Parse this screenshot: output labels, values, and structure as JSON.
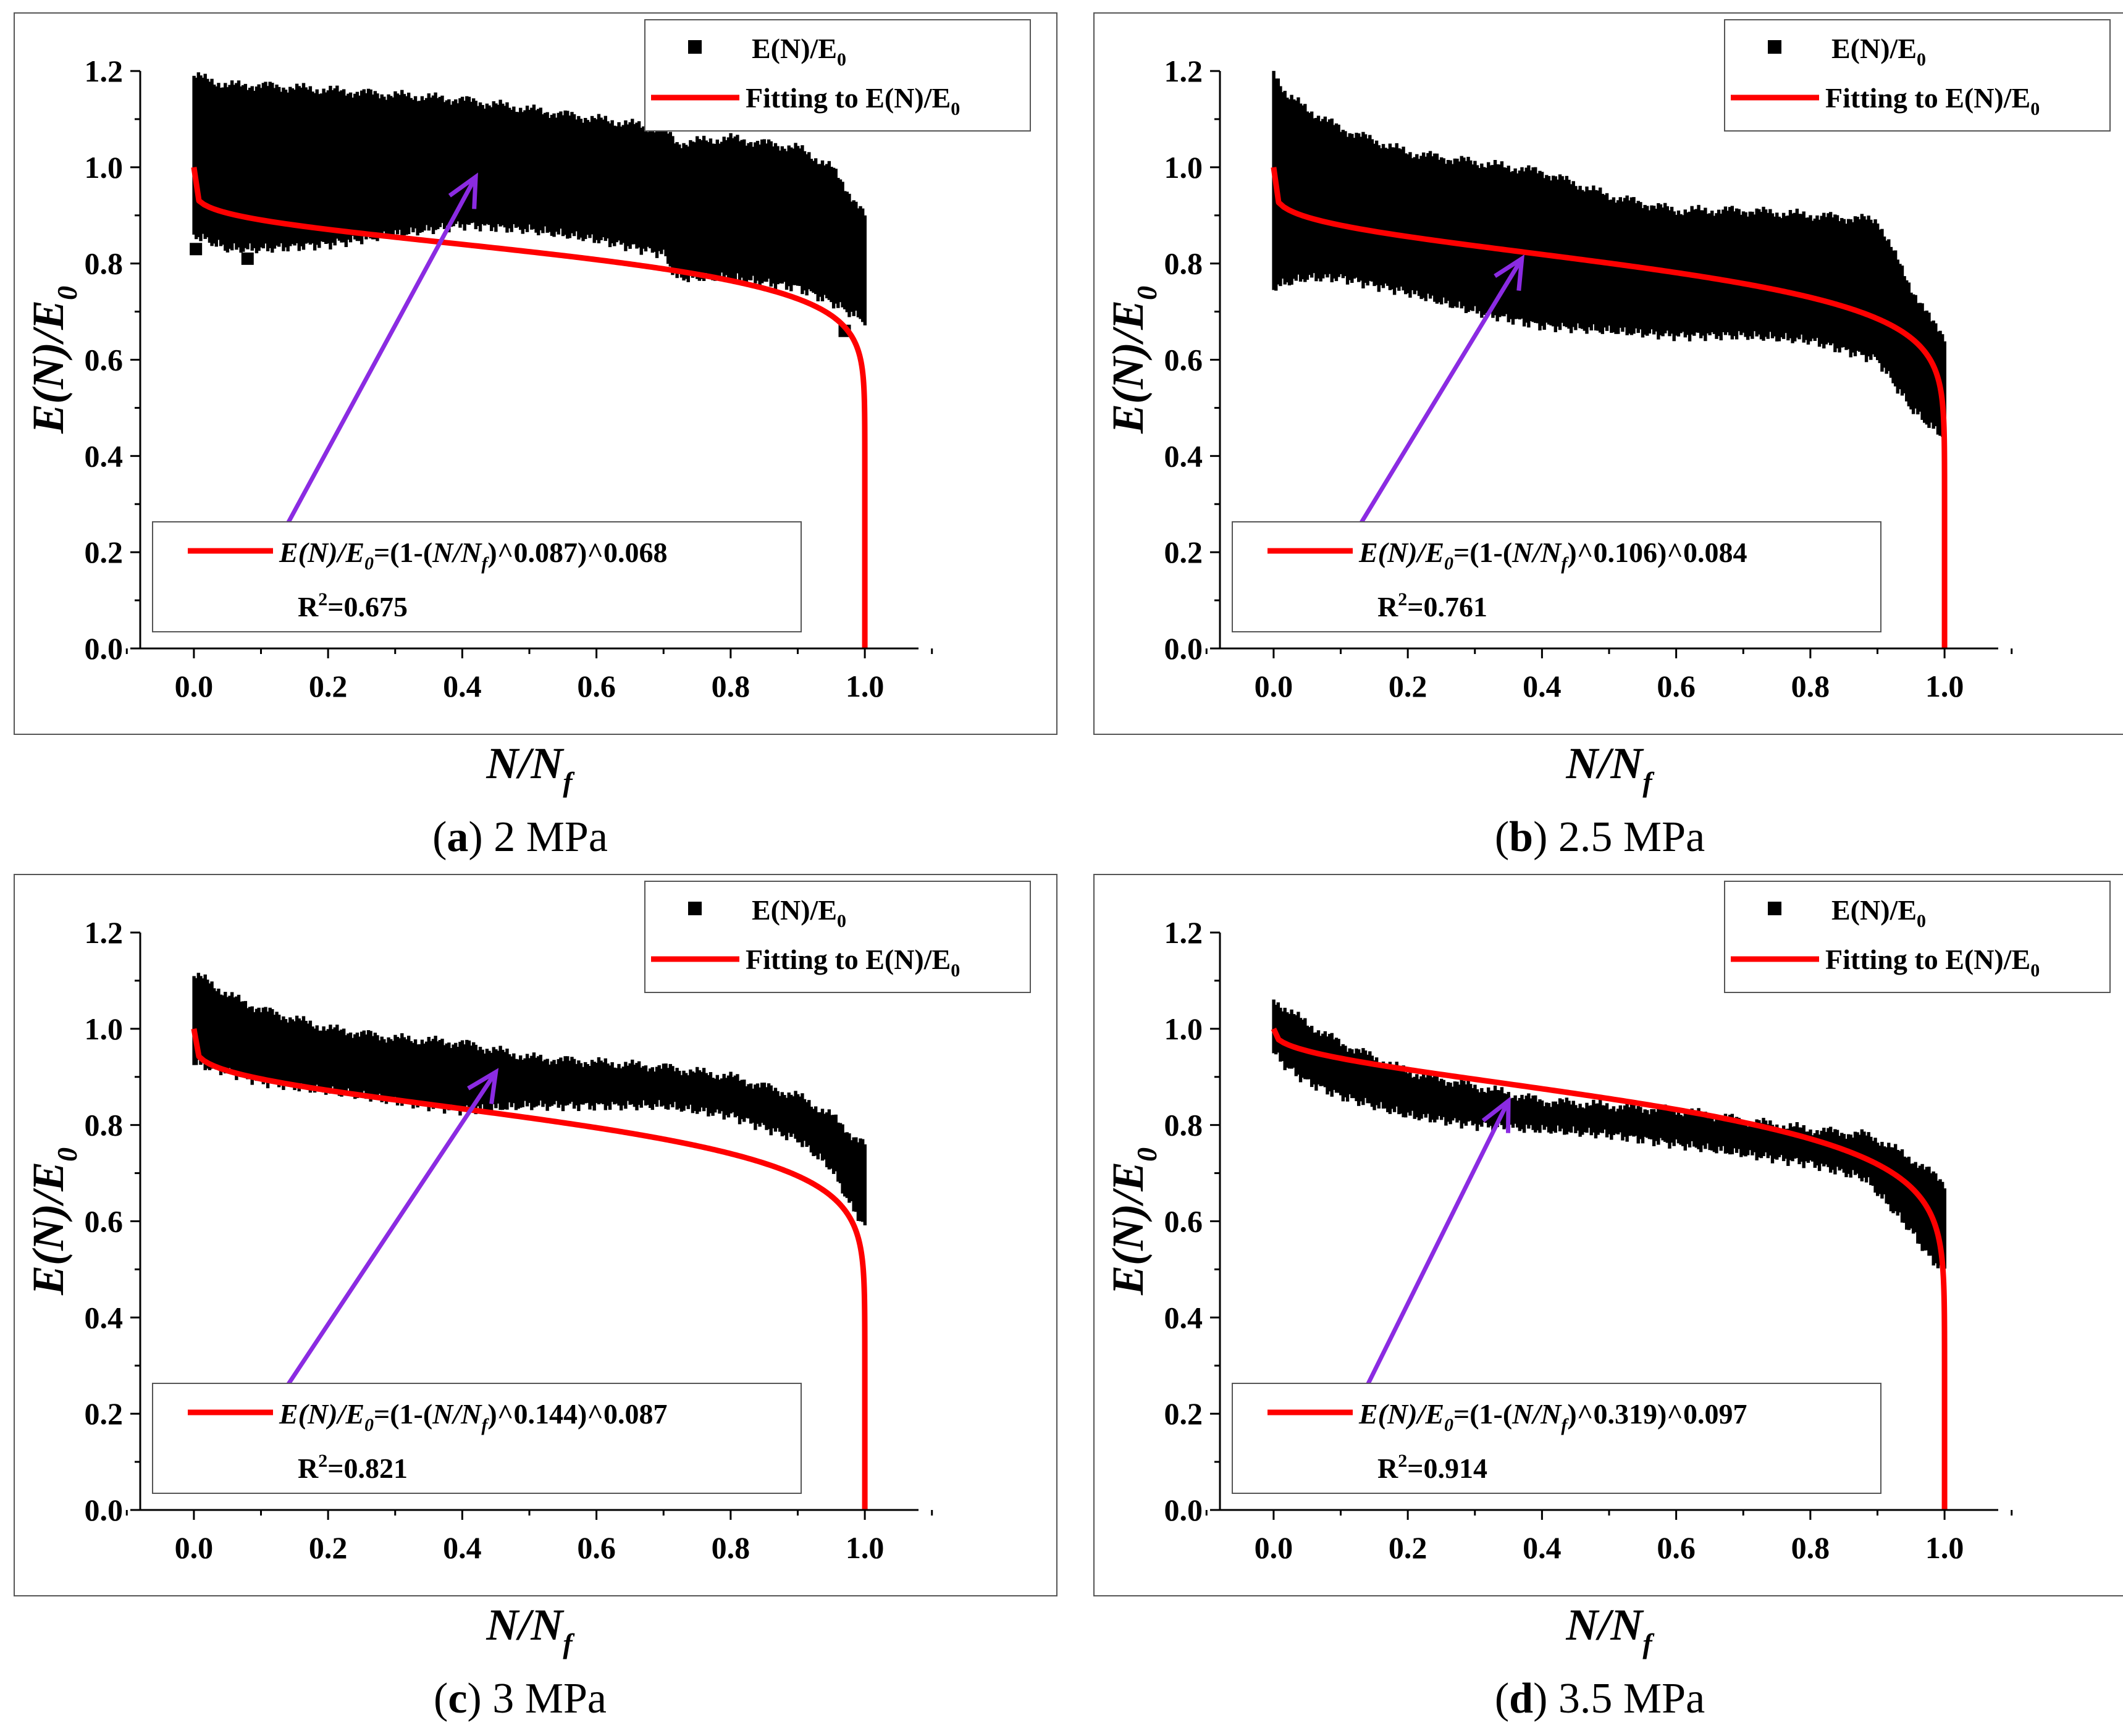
{
  "chart_data": [
    {
      "type": "scatter",
      "caption_letter": "a",
      "caption_text": "2 MPa",
      "xlabel": "N/N",
      "xlabel_sub": "f",
      "ylabel": "E(N)/E",
      "ylabel_sub": "0",
      "xlim": [
        -0.08,
        1.08
      ],
      "ylim": [
        0,
        1.2
      ],
      "xticks": [
        0.0,
        0.2,
        0.4,
        0.6,
        0.8,
        1.0
      ],
      "yticks": [
        0.0,
        0.2,
        0.4,
        0.6,
        0.8,
        1.0,
        1.2
      ],
      "tick_labels_x": [
        "0.0",
        "0.2",
        "0.4",
        "0.6",
        "0.8",
        "1.0"
      ],
      "tick_labels_y": [
        "0.0",
        "0.2",
        "0.4",
        "0.6",
        "0.8",
        "1.0",
        "1.2"
      ],
      "legend_position": "top-right",
      "legend": [
        {
          "label": "E(N)/E",
          "sub": "0",
          "marker": "square",
          "color": "#000000"
        },
        {
          "label": "Fitting to E(N)/E",
          "sub": "0",
          "marker": "line",
          "color": "#ff0000"
        }
      ],
      "fit": {
        "a": 0.087,
        "b": 0.068
      },
      "series": [
        {
          "kind": "band",
          "color": "#000000",
          "x": [
            0.0,
            0.05,
            0.1,
            0.2,
            0.3,
            0.4,
            0.5,
            0.6,
            0.7,
            0.72,
            0.8,
            0.9,
            0.95,
            1.0
          ],
          "upper": [
            1.19,
            1.17,
            1.17,
            1.16,
            1.15,
            1.14,
            1.12,
            1.1,
            1.08,
            1.05,
            1.06,
            1.04,
            1.0,
            0.9
          ],
          "lower": [
            0.86,
            0.83,
            0.83,
            0.84,
            0.86,
            0.88,
            0.87,
            0.85,
            0.82,
            0.77,
            0.77,
            0.75,
            0.72,
            0.68
          ]
        },
        {
          "kind": "outliers",
          "color": "#000000",
          "points": [
            [
              0.003,
              0.83
            ],
            [
              0.08,
              0.81
            ],
            [
              0.97,
              0.66
            ]
          ]
        },
        {
          "kind": "fit",
          "color": "#ff0000"
        }
      ],
      "equation": {
        "lhs": "E(N)/E",
        "lhs_sub": "0",
        "mid": "=(1-(",
        "var": "N/N",
        "var_sub": "f",
        "rhs": ")^0.087)^0.068"
      },
      "r2": {
        "label": "R",
        "exp": "2",
        "value": "=0.675"
      },
      "arrow": {
        "from": [
          0.14,
          0.26
        ],
        "to": [
          0.42,
          0.98
        ],
        "color": "#8b2be2"
      }
    },
    {
      "type": "scatter",
      "caption_letter": "b",
      "caption_text": "2.5 MPa",
      "xlabel": "N/N",
      "xlabel_sub": "f",
      "ylabel": "E(N)/E",
      "ylabel_sub": "0",
      "xlim": [
        -0.08,
        1.08
      ],
      "ylim": [
        0,
        1.2
      ],
      "xticks": [
        0.0,
        0.2,
        0.4,
        0.6,
        0.8,
        1.0
      ],
      "yticks": [
        0.0,
        0.2,
        0.4,
        0.6,
        0.8,
        1.0,
        1.2
      ],
      "tick_labels_x": [
        "0.0",
        "0.2",
        "0.4",
        "0.6",
        "0.8",
        "1.0"
      ],
      "tick_labels_y": [
        "0.0",
        "0.2",
        "0.4",
        "0.6",
        "0.8",
        "1.0",
        "1.2"
      ],
      "legend_position": "top-right",
      "legend": [
        {
          "label": "E(N)/E",
          "sub": "0",
          "marker": "square",
          "color": "#000000"
        },
        {
          "label": "Fitting to E(N)/E",
          "sub": "0",
          "marker": "line",
          "color": "#ff0000"
        }
      ],
      "fit": {
        "a": 0.106,
        "b": 0.084
      },
      "series": [
        {
          "kind": "band",
          "color": "#000000",
          "x": [
            0.0,
            0.02,
            0.05,
            0.1,
            0.2,
            0.3,
            0.4,
            0.5,
            0.6,
            0.7,
            0.8,
            0.9,
            0.95,
            0.98,
            1.0
          ],
          "upper": [
            1.2,
            1.15,
            1.12,
            1.08,
            1.03,
            1.01,
            0.99,
            0.94,
            0.91,
            0.91,
            0.9,
            0.89,
            0.75,
            0.68,
            0.65
          ],
          "lower": [
            0.75,
            0.76,
            0.77,
            0.77,
            0.74,
            0.7,
            0.67,
            0.66,
            0.65,
            0.65,
            0.64,
            0.6,
            0.5,
            0.46,
            0.44
          ]
        },
        {
          "kind": "outliers",
          "color": "#000000",
          "points": []
        },
        {
          "kind": "fit",
          "color": "#ff0000"
        }
      ],
      "equation": {
        "lhs": "E(N)/E",
        "lhs_sub": "0",
        "mid": "=(1-(",
        "var": "N/N",
        "var_sub": "f",
        "rhs": ")^0.106)^0.084"
      },
      "r2": {
        "label": "R",
        "exp": "2",
        "value": "=0.761"
      },
      "arrow": {
        "from": [
          0.13,
          0.26
        ],
        "to": [
          0.37,
          0.81
        ],
        "color": "#8b2be2"
      }
    },
    {
      "type": "scatter",
      "caption_letter": "c",
      "caption_text": "3 MPa",
      "xlabel": "N/N",
      "xlabel_sub": "f",
      "ylabel": "E(N)/E",
      "ylabel_sub": "0",
      "xlim": [
        -0.08,
        1.08
      ],
      "ylim": [
        0,
        1.2
      ],
      "xticks": [
        0.0,
        0.2,
        0.4,
        0.6,
        0.8,
        1.0
      ],
      "yticks": [
        0.0,
        0.2,
        0.4,
        0.6,
        0.8,
        1.0,
        1.2
      ],
      "tick_labels_x": [
        "0.0",
        "0.2",
        "0.4",
        "0.6",
        "0.8",
        "1.0"
      ],
      "tick_labels_y": [
        "0.0",
        "0.2",
        "0.4",
        "0.6",
        "0.8",
        "1.0",
        "1.2"
      ],
      "legend_position": "top-right",
      "legend": [
        {
          "label": "E(N)/E",
          "sub": "0",
          "marker": "square",
          "color": "#000000"
        },
        {
          "label": "Fitting to E(N)/E",
          "sub": "0",
          "marker": "line",
          "color": "#ff0000"
        }
      ],
      "fit": {
        "a": 0.144,
        "b": 0.087
      },
      "series": [
        {
          "kind": "band",
          "color": "#000000",
          "x": [
            0.0,
            0.02,
            0.05,
            0.1,
            0.2,
            0.3,
            0.4,
            0.5,
            0.6,
            0.7,
            0.8,
            0.9,
            0.95,
            0.98,
            1.0
          ],
          "upper": [
            1.11,
            1.1,
            1.07,
            1.04,
            1.0,
            0.98,
            0.97,
            0.94,
            0.93,
            0.92,
            0.9,
            0.86,
            0.82,
            0.78,
            0.76
          ],
          "lower": [
            0.93,
            0.92,
            0.91,
            0.89,
            0.87,
            0.85,
            0.83,
            0.84,
            0.84,
            0.84,
            0.82,
            0.77,
            0.71,
            0.63,
            0.59
          ]
        },
        {
          "kind": "outliers",
          "color": "#000000",
          "points": []
        },
        {
          "kind": "fit",
          "color": "#ff0000"
        }
      ],
      "equation": {
        "lhs": "E(N)/E",
        "lhs_sub": "0",
        "mid": "=(1-(",
        "var": "N/N",
        "var_sub": "f",
        "rhs": ")^0.144)^0.087"
      },
      "r2": {
        "label": "R",
        "exp": "2",
        "value": "=0.821"
      },
      "arrow": {
        "from": [
          0.14,
          0.26
        ],
        "to": [
          0.45,
          0.91
        ],
        "color": "#8b2be2"
      }
    },
    {
      "type": "scatter",
      "caption_letter": "d",
      "caption_text": "3.5 MPa",
      "xlabel": "N/N",
      "xlabel_sub": "f",
      "ylabel": "E(N)/E",
      "ylabel_sub": "0",
      "xlim": [
        -0.08,
        1.08
      ],
      "ylim": [
        0,
        1.2
      ],
      "xticks": [
        0.0,
        0.2,
        0.4,
        0.6,
        0.8,
        1.0
      ],
      "yticks": [
        0.0,
        0.2,
        0.4,
        0.6,
        0.8,
        1.0,
        1.2
      ],
      "tick_labels_x": [
        "0.0",
        "0.2",
        "0.4",
        "0.6",
        "0.8",
        "1.0"
      ],
      "tick_labels_y": [
        "0.0",
        "0.2",
        "0.4",
        "0.6",
        "0.8",
        "1.0",
        "1.2"
      ],
      "legend_position": "top-right",
      "legend": [
        {
          "label": "E(N)/E",
          "sub": "0",
          "marker": "square",
          "color": "#000000"
        },
        {
          "label": "Fitting to E(N)/E",
          "sub": "0",
          "marker": "line",
          "color": "#ff0000"
        }
      ],
      "fit": {
        "a": 0.319,
        "b": 0.097
      },
      "series": [
        {
          "kind": "band",
          "color": "#000000",
          "x": [
            0.0,
            0.02,
            0.05,
            0.1,
            0.2,
            0.3,
            0.4,
            0.5,
            0.6,
            0.7,
            0.8,
            0.88,
            0.9,
            0.95,
            0.98,
            1.0
          ],
          "upper": [
            1.06,
            1.04,
            1.01,
            0.97,
            0.91,
            0.88,
            0.85,
            0.84,
            0.83,
            0.81,
            0.79,
            0.78,
            0.77,
            0.73,
            0.7,
            0.68
          ],
          "lower": [
            0.95,
            0.92,
            0.89,
            0.86,
            0.82,
            0.8,
            0.79,
            0.78,
            0.76,
            0.74,
            0.72,
            0.69,
            0.66,
            0.58,
            0.52,
            0.5
          ]
        },
        {
          "kind": "outliers",
          "color": "#000000",
          "points": []
        },
        {
          "kind": "fit",
          "color": "#ff0000"
        }
      ],
      "equation": {
        "lhs": "E(N)/E",
        "lhs_sub": "0",
        "mid": "=(1-(",
        "var": "N/N",
        "var_sub": "f",
        "rhs": ")^0.319)^0.097"
      },
      "r2": {
        "label": "R",
        "exp": "2",
        "value": "=0.914"
      },
      "arrow": {
        "from": [
          0.14,
          0.26
        ],
        "to": [
          0.35,
          0.85
        ],
        "color": "#8b2be2"
      }
    }
  ]
}
